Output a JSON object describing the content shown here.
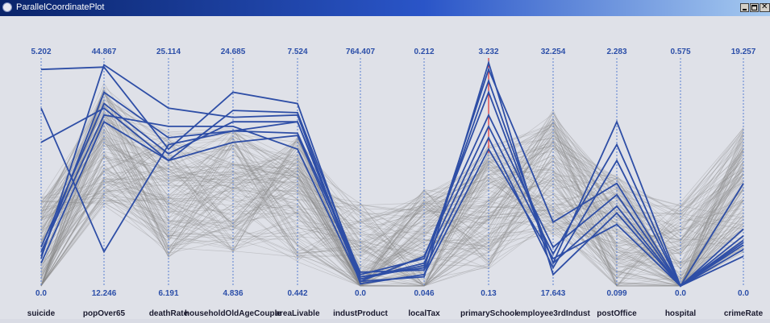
{
  "window": {
    "title": "ParallelCoordinatePlot",
    "app_icon": "app-icon",
    "minimize_icon": "minimize-icon",
    "maximize_icon": "maximize-icon",
    "close_icon": "close-icon"
  },
  "chart_data": {
    "type": "parallel-coordinates",
    "title": "",
    "axes": [
      {
        "name": "suicide",
        "min": "0.0",
        "max": "5.202"
      },
      {
        "name": "popOver65",
        "min": "12.246",
        "max": "44.867"
      },
      {
        "name": "deathRate",
        "min": "6.191",
        "max": "25.114"
      },
      {
        "name": "householdOldAgeCouple",
        "min": "4.836",
        "max": "24.685"
      },
      {
        "name": "areaLivable",
        "min": "0.442",
        "max": "7.524"
      },
      {
        "name": "industProduct",
        "min": "0.0",
        "max": "764.407"
      },
      {
        "name": "localTax",
        "min": "0.046",
        "max": "0.212"
      },
      {
        "name": "primarySchool",
        "min": "0.13",
        "max": "3.232"
      },
      {
        "name": "employee3rdIndust",
        "min": "17.643",
        "max": "32.254"
      },
      {
        "name": "postOffice",
        "min": "0.099",
        "max": "2.283"
      },
      {
        "name": "hospital",
        "min": "0.0",
        "max": "0.575"
      },
      {
        "name": "crimeRate",
        "min": "0.0",
        "max": "19.257"
      }
    ],
    "highlight_color": "#2e4ea6",
    "background_line_color": "#8a8a8a",
    "axis_color": "#5a7fd0",
    "label_color": "#2b4ea8",
    "highlighted_lines": [
      [
        0.78,
        0.15,
        0.62,
        0.68,
        0.72,
        0.04,
        0.08,
        0.95,
        0.28,
        0.45,
        0.0,
        0.45
      ],
      [
        0.95,
        0.96,
        0.6,
        0.85,
        0.8,
        0.03,
        0.1,
        0.7,
        0.14,
        0.62,
        0.0,
        0.2
      ],
      [
        0.63,
        0.78,
        0.55,
        0.77,
        0.76,
        0.05,
        0.12,
        0.85,
        0.1,
        0.72,
        0.0,
        0.25
      ],
      [
        0.15,
        0.75,
        0.7,
        0.7,
        0.6,
        0.02,
        0.04,
        0.98,
        0.05,
        0.32,
        0.0,
        0.18
      ],
      [
        0.12,
        0.97,
        0.78,
        0.74,
        0.75,
        0.01,
        0.05,
        0.6,
        0.12,
        0.27,
        0.0,
        0.13
      ],
      [
        0.1,
        0.72,
        0.55,
        0.63,
        0.66,
        0.03,
        0.09,
        0.9,
        0.1,
        0.35,
        0.0,
        0.22
      ],
      [
        0.17,
        0.8,
        0.58,
        0.72,
        0.72,
        0.02,
        0.13,
        0.75,
        0.17,
        0.4,
        0.0,
        0.16
      ],
      [
        0.13,
        0.85,
        0.65,
        0.68,
        0.67,
        0.06,
        0.07,
        0.65,
        0.08,
        0.55,
        0.0,
        0.19
      ]
    ],
    "background_line_count": 140
  }
}
